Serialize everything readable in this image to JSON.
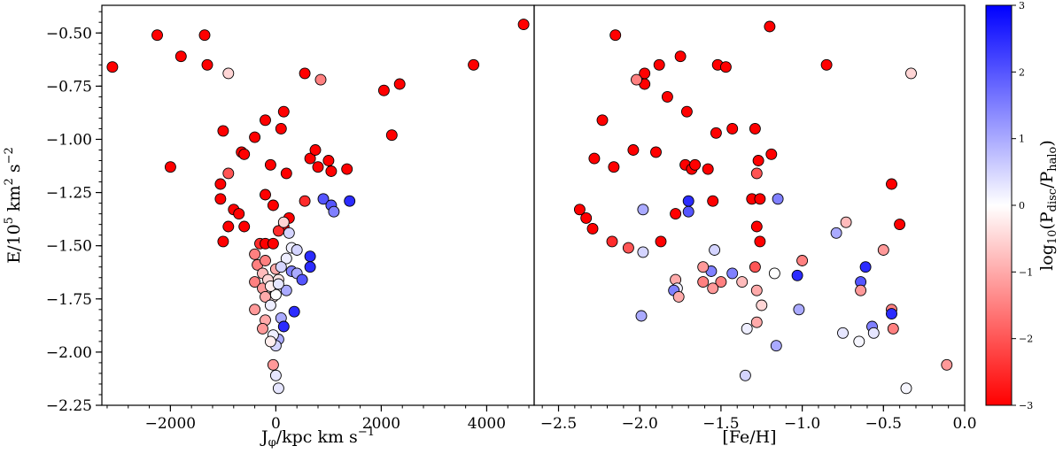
{
  "colors": {
    "frame": "#000000",
    "marker_edge": "#000000",
    "cmap_low": "#ff0000",
    "cmap_mid": "#ffffff",
    "cmap_high": "#0000ff"
  },
  "colorbar": {
    "label": "log10(Pdisc/Phalo)",
    "min": -3,
    "max": 3,
    "ticks": [
      3,
      2,
      1,
      0,
      -1,
      -2,
      -3
    ],
    "tick_labels": [
      "3",
      "2",
      "1",
      "0",
      "−1",
      "−2",
      "−3"
    ]
  },
  "chart_data": [
    {
      "type": "scatter",
      "xlabel": "Jφ/kpc km s−1",
      "ylabel": "E/10⁵ km² s⁻²",
      "xlim": [
        -3300,
        4900
      ],
      "ylim": [
        -2.25,
        -0.37
      ],
      "xticks": [
        -2000,
        0,
        2000,
        4000
      ],
      "xtick_labels": [
        "−2000",
        "0",
        "2000",
        "4000"
      ],
      "yticks": [
        -0.5,
        -0.75,
        -1.0,
        -1.25,
        -1.5,
        -1.75,
        -2.0,
        -2.25
      ],
      "ytick_labels": [
        "−0.50",
        "−0.75",
        "−1.00",
        "−1.25",
        "−1.50",
        "−1.75",
        "−2.00",
        "−2.25"
      ],
      "points": [
        [
          -3100,
          -0.66,
          -3
        ],
        [
          -2250,
          -0.51,
          -3
        ],
        [
          -1350,
          -0.51,
          -3
        ],
        [
          -1800,
          -0.61,
          -3
        ],
        [
          -1300,
          -0.65,
          -3
        ],
        [
          -2000,
          -1.13,
          -3
        ],
        [
          -1000,
          -0.96,
          -3
        ],
        [
          -900,
          -1.16,
          -2
        ],
        [
          -1050,
          -1.21,
          -3
        ],
        [
          -1050,
          -1.28,
          -3
        ],
        [
          -800,
          -1.33,
          -3
        ],
        [
          -700,
          -1.35,
          -3
        ],
        [
          -900,
          -1.41,
          -3
        ],
        [
          -1000,
          -1.48,
          -3
        ],
        [
          -600,
          -1.41,
          -3
        ],
        [
          -300,
          -1.49,
          -2.5
        ],
        [
          -200,
          -1.49,
          -3
        ],
        [
          -50,
          -1.49,
          -3
        ],
        [
          -900,
          -0.69,
          -0.5
        ],
        [
          -650,
          -1.06,
          -3
        ],
        [
          -600,
          -1.07,
          -3
        ],
        [
          -400,
          -0.99,
          -3
        ],
        [
          -200,
          -0.91,
          -3
        ],
        [
          100,
          -0.95,
          -3
        ],
        [
          150,
          -0.87,
          -3
        ],
        [
          -100,
          -1.12,
          -3
        ],
        [
          200,
          -1.16,
          -3
        ],
        [
          -200,
          -1.26,
          -3
        ],
        [
          -50,
          -1.31,
          -3
        ],
        [
          150,
          -1.41,
          -3
        ],
        [
          50,
          -1.43,
          -2.5
        ],
        [
          250,
          -1.37,
          -3
        ],
        [
          550,
          -0.69,
          -3
        ],
        [
          850,
          -0.72,
          -1.5
        ],
        [
          2050,
          -0.77,
          -3
        ],
        [
          2350,
          -0.74,
          -3
        ],
        [
          3750,
          -0.65,
          -3
        ],
        [
          4700,
          -0.46,
          -3
        ],
        [
          650,
          -1.09,
          -3
        ],
        [
          750,
          -1.05,
          -3
        ],
        [
          1000,
          -1.1,
          -3
        ],
        [
          1050,
          -1.15,
          -3
        ],
        [
          800,
          -1.13,
          -3
        ],
        [
          1350,
          -1.14,
          -3
        ],
        [
          2200,
          -0.98,
          -3
        ],
        [
          550,
          -1.29,
          -2.5
        ],
        [
          900,
          -1.28,
          2
        ],
        [
          1050,
          -1.31,
          2
        ],
        [
          1100,
          -1.34,
          1.5
        ],
        [
          1400,
          -1.29,
          2.5
        ],
        [
          150,
          -1.39,
          -0.5
        ],
        [
          250,
          -1.44,
          0.5
        ],
        [
          300,
          -1.51,
          0.2
        ],
        [
          400,
          -1.52,
          0.5
        ],
        [
          650,
          -1.55,
          2.5
        ],
        [
          650,
          -1.6,
          2.5
        ],
        [
          200,
          -1.56,
          0.2
        ],
        [
          300,
          -1.62,
          1.5
        ],
        [
          400,
          -1.63,
          1.0
        ],
        [
          500,
          -1.66,
          2.0
        ],
        [
          350,
          -1.81,
          2.5
        ],
        [
          200,
          -1.71,
          1.0
        ],
        [
          100,
          -1.84,
          1.0
        ],
        [
          150,
          -1.88,
          2.5
        ],
        [
          50,
          -1.94,
          1.0
        ],
        [
          0,
          -1.97,
          0.5
        ],
        [
          -400,
          -1.54,
          -1.5
        ],
        [
          -350,
          -1.59,
          -1.5
        ],
        [
          -200,
          -1.57,
          -1.5
        ],
        [
          -250,
          -1.63,
          -0.8
        ],
        [
          -400,
          -1.67,
          -1.5
        ],
        [
          -250,
          -1.7,
          -1.2
        ],
        [
          -150,
          -1.66,
          -0.5
        ],
        [
          0,
          -1.61,
          -1.0
        ],
        [
          50,
          -1.66,
          -0.3
        ],
        [
          100,
          -1.6,
          0.5
        ],
        [
          -50,
          -1.74,
          -0.3
        ],
        [
          -200,
          -1.74,
          -1.0
        ],
        [
          -400,
          -1.8,
          -1.2
        ],
        [
          -100,
          -1.78,
          0.2
        ],
        [
          -200,
          -1.85,
          -1.0
        ],
        [
          -250,
          -1.89,
          -1.2
        ],
        [
          -50,
          -1.92,
          0.2
        ],
        [
          -100,
          -1.95,
          -0.2
        ],
        [
          -50,
          -2.06,
          -1.2
        ],
        [
          0,
          -2.11,
          0.3
        ],
        [
          50,
          -2.17,
          0.3
        ],
        [
          0,
          -1.73,
          0.0
        ],
        [
          -100,
          -1.69,
          -0.2
        ],
        [
          50,
          -1.68,
          0.3
        ]
      ]
    },
    {
      "type": "scatter",
      "xlabel": "[Fe/H]",
      "ylabel": "",
      "xlim": [
        -2.65,
        0.0
      ],
      "ylim": [
        -2.25,
        -0.37
      ],
      "xticks": [
        -2.5,
        -2.0,
        -1.5,
        -1.0,
        -0.5,
        0.0
      ],
      "xtick_labels": [
        "−2.5",
        "−2.0",
        "−1.5",
        "−1.0",
        "−0.5",
        "0.0"
      ],
      "points": [
        [
          -2.15,
          -0.51,
          -3
        ],
        [
          -1.97,
          -0.69,
          -3
        ],
        [
          -1.97,
          -0.74,
          -3
        ],
        [
          -1.88,
          -0.65,
          -3
        ],
        [
          -1.75,
          -0.61,
          -3
        ],
        [
          -2.02,
          -0.72,
          -1.5
        ],
        [
          -1.52,
          -0.65,
          -3
        ],
        [
          -1.47,
          -0.66,
          -3
        ],
        [
          -1.2,
          -0.47,
          -3
        ],
        [
          -0.85,
          -0.65,
          -3
        ],
        [
          -0.33,
          -0.69,
          -0.5
        ],
        [
          -2.23,
          -0.91,
          -3
        ],
        [
          -2.28,
          -1.09,
          -3
        ],
        [
          -2.16,
          -1.13,
          -3
        ],
        [
          -2.04,
          -1.05,
          -3
        ],
        [
          -1.9,
          -1.06,
          -3
        ],
        [
          -1.71,
          -0.87,
          -3
        ],
        [
          -1.72,
          -1.12,
          -3
        ],
        [
          -1.68,
          -1.14,
          -3
        ],
        [
          -1.66,
          -1.12,
          -3
        ],
        [
          -1.58,
          -1.14,
          -3
        ],
        [
          -1.43,
          -0.95,
          -3
        ],
        [
          -1.53,
          -0.97,
          -3
        ],
        [
          -1.29,
          -0.95,
          -3
        ],
        [
          -1.27,
          -1.1,
          -3
        ],
        [
          -1.28,
          -1.16,
          -2
        ],
        [
          -1.19,
          -1.07,
          -3
        ],
        [
          -1.83,
          -0.8,
          -3
        ],
        [
          -2.37,
          -1.33,
          -3
        ],
        [
          -2.33,
          -1.37,
          -3
        ],
        [
          -2.29,
          -1.42,
          -3
        ],
        [
          -2.17,
          -1.48,
          -2.5
        ],
        [
          -2.07,
          -1.51,
          -2
        ],
        [
          -1.98,
          -1.53,
          0.5
        ],
        [
          -1.98,
          -1.33,
          1.0
        ],
        [
          -1.87,
          -1.48,
          -3
        ],
        [
          -1.7,
          -1.29,
          2.5
        ],
        [
          -1.7,
          -1.34,
          2.0
        ],
        [
          -1.78,
          -1.35,
          -3
        ],
        [
          -1.55,
          -1.29,
          -3
        ],
        [
          -1.31,
          -1.28,
          -3
        ],
        [
          -1.26,
          -1.28,
          -3
        ],
        [
          -1.28,
          -1.41,
          -3
        ],
        [
          -1.26,
          -1.48,
          -3
        ],
        [
          -1.15,
          -1.28,
          1.5
        ],
        [
          -1.54,
          -1.52,
          0.5
        ],
        [
          -1.56,
          -1.62,
          1.5
        ],
        [
          -1.61,
          -1.6,
          -1.2
        ],
        [
          -1.43,
          -1.63,
          1.5
        ],
        [
          -1.5,
          -1.67,
          -1.5
        ],
        [
          -1.55,
          -1.7,
          -1.2
        ],
        [
          -1.61,
          -1.67,
          -1.5
        ],
        [
          -1.78,
          -1.66,
          -1.0
        ],
        [
          -1.77,
          -1.7,
          0.2
        ],
        [
          -1.79,
          -1.71,
          1.5
        ],
        [
          -1.76,
          -1.74,
          -1.0
        ],
        [
          -1.37,
          -1.67,
          -0.8
        ],
        [
          -1.29,
          -1.6,
          -2
        ],
        [
          -1.28,
          -1.71,
          -1.0
        ],
        [
          -1.17,
          -1.63,
          0.0
        ],
        [
          -1.25,
          -1.78,
          -0.5
        ],
        [
          -1.28,
          -1.86,
          -1.0
        ],
        [
          -1.34,
          -1.89,
          0.2
        ],
        [
          -1.16,
          -1.97,
          1.0
        ],
        [
          -1.0,
          -1.57,
          -1.5
        ],
        [
          -1.03,
          -1.64,
          2.5
        ],
        [
          -1.02,
          -1.8,
          1.0
        ],
        [
          -1.99,
          -1.83,
          1.0
        ],
        [
          -1.35,
          -2.11,
          0.5
        ],
        [
          -0.79,
          -1.44,
          1.0
        ],
        [
          -0.73,
          -1.39,
          -0.8
        ],
        [
          -0.61,
          -1.6,
          2.5
        ],
        [
          -0.64,
          -1.67,
          2.0
        ],
        [
          -0.64,
          -1.71,
          -1.2
        ],
        [
          -0.75,
          -1.91,
          0.3
        ],
        [
          -0.65,
          -1.95,
          0.1
        ],
        [
          -0.57,
          -1.88,
          1.5
        ],
        [
          -0.56,
          -1.91,
          0.3
        ],
        [
          -0.5,
          -1.52,
          -1.2
        ],
        [
          -0.45,
          -1.21,
          -3
        ],
        [
          -0.4,
          -1.4,
          -3
        ],
        [
          -0.45,
          -1.8,
          -1.5
        ],
        [
          -0.45,
          -1.82,
          2.5
        ],
        [
          -0.44,
          -1.89,
          -1.5
        ],
        [
          -0.36,
          -2.17,
          0.1
        ],
        [
          -0.11,
          -2.06,
          -1.2
        ]
      ]
    }
  ]
}
